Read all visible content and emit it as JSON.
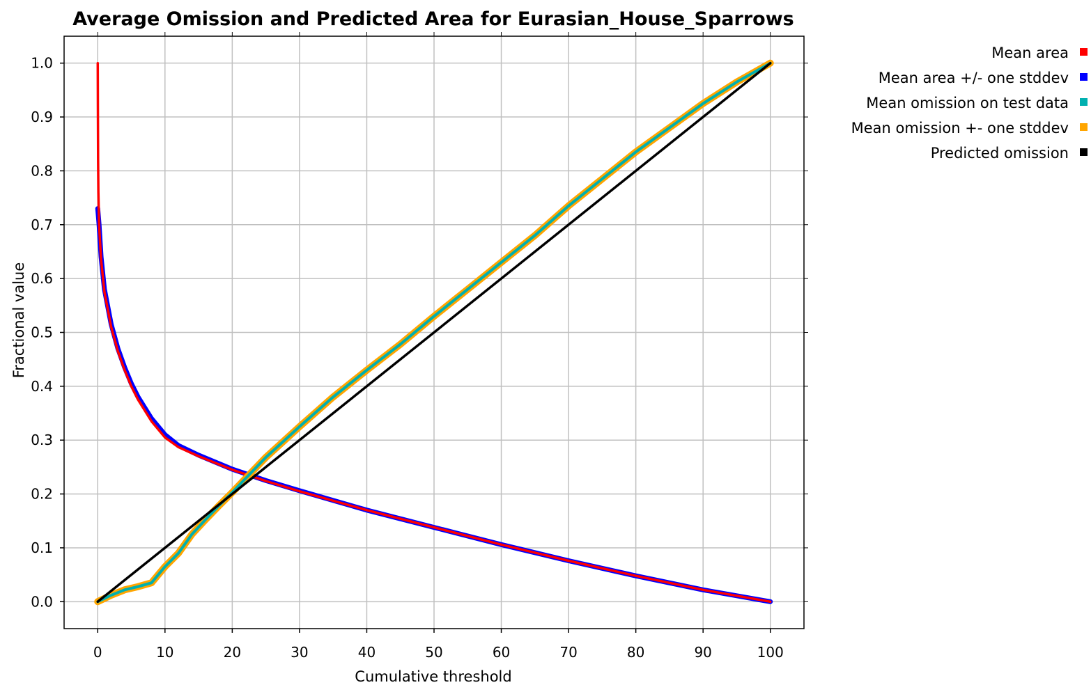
{
  "chart_data": {
    "type": "line",
    "title": "Average Omission and Predicted Area for Eurasian_House_Sparrows",
    "xlabel": "Cumulative threshold",
    "ylabel": "Fractional value",
    "xlim": [
      -5,
      105
    ],
    "ylim": [
      -0.05,
      1.05
    ],
    "xticks": [
      0,
      10,
      20,
      30,
      40,
      50,
      60,
      70,
      80,
      90,
      100
    ],
    "yticks": [
      0.0,
      0.1,
      0.2,
      0.3,
      0.4,
      0.5,
      0.6,
      0.7,
      0.8,
      0.9,
      1.0
    ],
    "xtick_labels": [
      "0",
      "10",
      "20",
      "30",
      "40",
      "50",
      "60",
      "70",
      "80",
      "90",
      "100"
    ],
    "ytick_labels": [
      "0.0",
      "0.1",
      "0.2",
      "0.3",
      "0.4",
      "0.5",
      "0.6",
      "0.7",
      "0.8",
      "0.9",
      "1.0"
    ],
    "grid": true,
    "legend_position": "right",
    "legend": [
      {
        "name": "Mean area",
        "color": "#ff0000"
      },
      {
        "name": "Mean area +/- one stddev",
        "color": "#0000ff"
      },
      {
        "name": "Mean omission on test data",
        "color": "#00b0b0"
      },
      {
        "name": "Mean omission +- one stddev",
        "color": "#ffa500"
      },
      {
        "name": "Predicted omission",
        "color": "#000000"
      }
    ],
    "series": [
      {
        "name": "Mean area +/- one stddev",
        "color": "#0000ff",
        "x": [
          0,
          0.2,
          0.5,
          1,
          2,
          3,
          4,
          5,
          6,
          8,
          10,
          12,
          15,
          20,
          25,
          30,
          40,
          50,
          60,
          70,
          80,
          90,
          100
        ],
        "y": [
          0.73,
          0.7,
          0.64,
          0.58,
          0.515,
          0.47,
          0.435,
          0.405,
          0.38,
          0.34,
          0.31,
          0.29,
          0.272,
          0.246,
          0.225,
          0.206,
          0.17,
          0.138,
          0.106,
          0.076,
          0.048,
          0.022,
          0.0
        ]
      },
      {
        "name": "Mean area",
        "color": "#ff0000",
        "x": [
          0,
          0.02,
          0.05,
          0.1,
          0.2,
          0.5,
          1,
          2,
          3,
          4,
          5,
          6,
          8,
          10,
          12,
          15,
          20,
          25,
          30,
          40,
          50,
          60,
          70,
          80,
          90,
          100
        ],
        "y": [
          1.0,
          0.92,
          0.82,
          0.76,
          0.7,
          0.635,
          0.575,
          0.51,
          0.465,
          0.43,
          0.4,
          0.375,
          0.335,
          0.305,
          0.287,
          0.27,
          0.245,
          0.224,
          0.205,
          0.17,
          0.138,
          0.106,
          0.076,
          0.048,
          0.022,
          0.0
        ]
      },
      {
        "name": "Mean omission +- one stddev",
        "color": "#ffa500",
        "x": [
          0,
          2,
          4,
          6,
          8,
          10,
          12,
          14,
          16,
          18,
          20,
          25,
          30,
          35,
          40,
          45,
          50,
          55,
          60,
          65,
          70,
          75,
          80,
          85,
          90,
          95,
          100
        ],
        "y": [
          0.0,
          0.012,
          0.022,
          0.028,
          0.035,
          0.065,
          0.09,
          0.125,
          0.152,
          0.178,
          0.203,
          0.268,
          0.325,
          0.38,
          0.43,
          0.478,
          0.53,
          0.58,
          0.63,
          0.68,
          0.735,
          0.785,
          0.835,
          0.88,
          0.925,
          0.965,
          1.0
        ]
      },
      {
        "name": "Mean omission on test data",
        "color": "#00b0b0",
        "x": [
          0,
          2,
          4,
          6,
          8,
          10,
          12,
          14,
          16,
          18,
          20,
          25,
          30,
          35,
          40,
          45,
          50,
          55,
          60,
          65,
          70,
          75,
          80,
          85,
          90,
          95,
          100
        ],
        "y": [
          0.0,
          0.012,
          0.022,
          0.028,
          0.035,
          0.065,
          0.09,
          0.125,
          0.152,
          0.178,
          0.203,
          0.268,
          0.325,
          0.38,
          0.43,
          0.478,
          0.53,
          0.58,
          0.63,
          0.68,
          0.735,
          0.785,
          0.835,
          0.88,
          0.925,
          0.965,
          1.0
        ]
      },
      {
        "name": "Predicted omission",
        "color": "#000000",
        "x": [
          0,
          100
        ],
        "y": [
          0.0,
          1.0
        ]
      }
    ]
  }
}
